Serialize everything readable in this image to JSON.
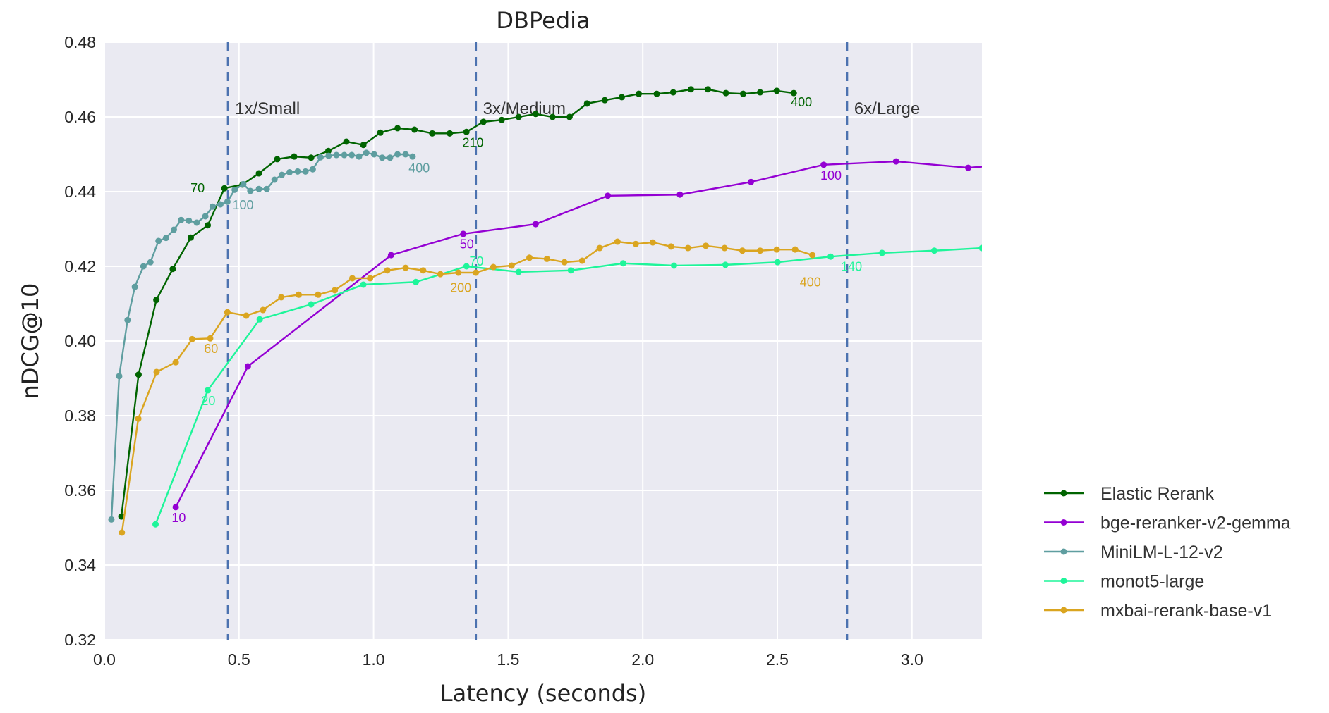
{
  "chart_data": {
    "type": "line",
    "title": "DBPedia",
    "xlabel": "Latency (seconds)",
    "ylabel": "nDCG@10",
    "xlim": [
      0,
      3.26
    ],
    "ylim": [
      0.32,
      0.48
    ],
    "xticks": [
      "0.0",
      "0.5",
      "1.0",
      "1.5",
      "2.0",
      "2.5",
      "3.0"
    ],
    "yticks": [
      "0.32",
      "0.34",
      "0.36",
      "0.38",
      "0.40",
      "0.42",
      "0.44",
      "0.46",
      "0.48"
    ],
    "grid": true,
    "background": "#EAEAF2",
    "legend_position": "right, outside, lower",
    "vlines": [
      {
        "x": 0.459,
        "label": "1x/Small"
      },
      {
        "x": 1.38,
        "label": "3x/Medium"
      },
      {
        "x": 2.759,
        "label": "6x/Large"
      }
    ],
    "vline_color": "#4C72B0",
    "series": [
      {
        "name": "Elastic Rerank",
        "color": "#006400",
        "x": [
          0.063,
          0.127,
          0.193,
          0.254,
          0.321,
          0.384,
          0.446,
          0.513,
          0.574,
          0.642,
          0.705,
          0.768,
          0.832,
          0.899,
          0.962,
          1.025,
          1.089,
          1.152,
          1.218,
          1.283,
          1.345,
          1.408,
          1.476,
          1.539,
          1.602,
          1.665,
          1.728,
          1.793,
          1.859,
          1.922,
          1.985,
          2.052,
          2.113,
          2.179,
          2.242,
          2.309,
          2.373,
          2.436,
          2.498,
          2.561
        ],
        "y": [
          0.353,
          0.391,
          0.411,
          0.4193,
          0.4277,
          0.431,
          0.4409,
          0.4419,
          0.4449,
          0.4487,
          0.4494,
          0.4491,
          0.4509,
          0.4534,
          0.4525,
          0.4558,
          0.457,
          0.4566,
          0.4556,
          0.4556,
          0.456,
          0.4587,
          0.4592,
          0.46,
          0.4608,
          0.46,
          0.46,
          0.4636,
          0.4645,
          0.4653,
          0.4662,
          0.4662,
          0.4666,
          0.4674,
          0.4674,
          0.4664,
          0.4662,
          0.4666,
          0.467,
          0.4664
        ],
        "labels": [
          {
            "x": 0.43,
            "y": 0.436,
            "text": "70"
          },
          {
            "x": 1.33,
            "y": 0.452,
            "text": "210"
          },
          {
            "x": 2.55,
            "y": 0.4628,
            "text": "400"
          }
        ]
      },
      {
        "name": "bge-reranker-v2-gemma",
        "color": "#9400D3",
        "x": [
          0.265,
          0.533,
          1.065,
          1.333,
          1.602,
          1.87,
          2.138,
          2.402,
          2.672,
          2.941,
          3.209,
          3.45
        ],
        "y": [
          0.3555,
          0.3932,
          0.423,
          0.4287,
          0.4313,
          0.4389,
          0.4392,
          0.4426,
          0.4472,
          0.4481,
          0.4464,
          0.4478
        ],
        "labels": [
          {
            "x": 0.25,
            "y": 0.3515,
            "text": "10"
          },
          {
            "x": 1.32,
            "y": 0.4248,
            "text": "50"
          },
          {
            "x": 2.66,
            "y": 0.4432,
            "text": "100"
          }
        ]
      },
      {
        "name": "MiniLM-L-12-v2",
        "color": "#5F9EA0",
        "x": [
          0.026,
          0.055,
          0.086,
          0.113,
          0.145,
          0.171,
          0.201,
          0.229,
          0.258,
          0.285,
          0.314,
          0.343,
          0.375,
          0.402,
          0.431,
          0.457,
          0.484,
          0.516,
          0.542,
          0.574,
          0.603,
          0.632,
          0.659,
          0.688,
          0.718,
          0.747,
          0.774,
          0.803,
          0.833,
          0.862,
          0.891,
          0.919,
          0.946,
          0.973,
          1.002,
          1.032,
          1.061,
          1.089,
          1.119,
          1.145
        ],
        "y": [
          0.3522,
          0.3906,
          0.4056,
          0.4145,
          0.42,
          0.4211,
          0.4268,
          0.4276,
          0.4298,
          0.4324,
          0.4322,
          0.4317,
          0.4334,
          0.436,
          0.4366,
          0.4373,
          0.4405,
          0.442,
          0.4402,
          0.4407,
          0.4407,
          0.4432,
          0.4445,
          0.4452,
          0.4454,
          0.4454,
          0.446,
          0.4492,
          0.4496,
          0.4498,
          0.4498,
          0.4498,
          0.4494,
          0.4504,
          0.45,
          0.4491,
          0.4491,
          0.45,
          0.45,
          0.4494
        ],
        "labels": [
          {
            "x": 0.46,
            "y": 0.436,
            "text": "100"
          },
          {
            "x": 1.13,
            "y": 0.4452,
            "text": "400"
          }
        ]
      },
      {
        "name": "monot5-large",
        "color": "#1EF59A",
        "x": [
          0.19,
          0.384,
          0.577,
          0.768,
          0.962,
          1.157,
          1.345,
          1.539,
          1.733,
          1.927,
          2.116,
          2.307,
          2.501,
          2.698,
          2.889,
          3.083,
          3.26
        ],
        "y": [
          0.3509,
          0.3868,
          0.4058,
          0.4098,
          0.4151,
          0.4158,
          0.42,
          0.4185,
          0.4189,
          0.4208,
          0.4202,
          0.4204,
          0.4211,
          0.4226,
          0.4236,
          0.4242,
          0.4249
        ],
        "labels": [
          {
            "x": 0.36,
            "y": 0.3828,
            "text": "20"
          },
          {
            "x": 1.33,
            "y": 0.416,
            "text": "70"
          },
          {
            "x": 2.71,
            "y": 0.4188,
            "text": "140"
          }
        ]
      },
      {
        "name": "mxbai-rerank-base-v1",
        "color": "#DAA520",
        "x": [
          0.065,
          0.126,
          0.194,
          0.265,
          0.326,
          0.393,
          0.457,
          0.527,
          0.589,
          0.657,
          0.722,
          0.794,
          0.856,
          0.921,
          0.987,
          1.051,
          1.119,
          1.184,
          1.248,
          1.315,
          1.38,
          1.445,
          1.513,
          1.579,
          1.644,
          1.709,
          1.775,
          1.84,
          1.906,
          1.974,
          2.037,
          2.105,
          2.168,
          2.234,
          2.304,
          2.37,
          2.436,
          2.498,
          2.566,
          2.63
        ],
        "y": [
          0.3487,
          0.3792,
          0.3917,
          0.3943,
          0.4005,
          0.4007,
          0.4077,
          0.4068,
          0.4083,
          0.4117,
          0.4124,
          0.4124,
          0.4136,
          0.4168,
          0.4168,
          0.4189,
          0.4196,
          0.4189,
          0.4179,
          0.4183,
          0.4183,
          0.4198,
          0.4202,
          0.4223,
          0.422,
          0.4211,
          0.4215,
          0.4249,
          0.4266,
          0.426,
          0.4264,
          0.4253,
          0.4249,
          0.4255,
          0.4249,
          0.4242,
          0.4242,
          0.4245,
          0.4245,
          0.423
        ],
        "labels": [
          {
            "x": 0.37,
            "y": 0.3968,
            "text": "60"
          },
          {
            "x": 1.3,
            "y": 0.4142,
            "text": "200"
          },
          {
            "x": 2.62,
            "y": 0.4188,
            "text": "400"
          }
        ]
      }
    ]
  }
}
